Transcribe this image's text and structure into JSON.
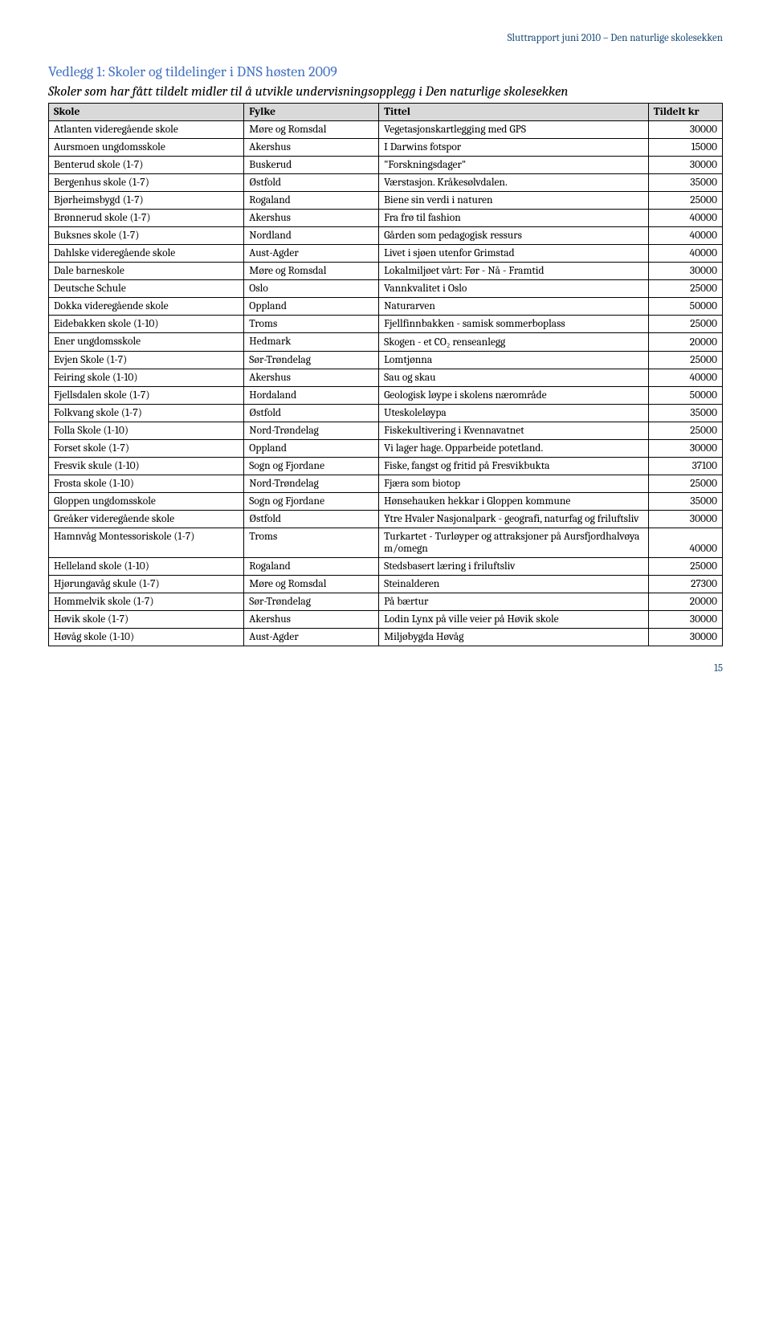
{
  "header": "Sluttrapport juni 2010 – Den naturlige skolesekken",
  "appendix_title": "Vedlegg 1: Skoler og tildelinger i DNS høsten 2009",
  "subtitle": "Skoler som har fått tildelt midler til å utvikle undervisningsopplegg i Den naturlige skolesekken",
  "columns": {
    "c1": "Skole",
    "c2": "Fylke",
    "c3": "Tittel",
    "c4": "Tildelt kr"
  },
  "rows": [
    {
      "skole": "Atlanten videregående skole",
      "fylke": "Møre og Romsdal",
      "tittel": "Vegetasjonskartlegging med GPS",
      "kr": "30000"
    },
    {
      "skole": "Aursmoen ungdomsskole",
      "fylke": "Akershus",
      "tittel": "I Darwins fotspor",
      "kr": "15000"
    },
    {
      "skole": "Benterud skole (1-7)",
      "fylke": "Buskerud",
      "tittel": "\"Forskningsdager\"",
      "kr": "30000"
    },
    {
      "skole": "Bergenhus skole (1-7)",
      "fylke": "Østfold",
      "tittel": "Værstasjon. Kråkesølvdalen.",
      "kr": "35000"
    },
    {
      "skole": "Bjørheimsbygd (1-7)",
      "fylke": "Rogaland",
      "tittel": "Biene sin verdi i naturen",
      "kr": "25000"
    },
    {
      "skole": "Brønnerud skole (1-7)",
      "fylke": "Akershus",
      "tittel": "Fra frø til fashion",
      "kr": "40000"
    },
    {
      "skole": "Buksnes skole (1-7)",
      "fylke": "Nordland",
      "tittel": "Gården som pedagogisk ressurs",
      "kr": "40000"
    },
    {
      "skole": "Dahlske videregående skole",
      "fylke": "Aust-Agder",
      "tittel": "Livet i sjøen utenfor Grimstad",
      "kr": "40000"
    },
    {
      "skole": "Dale barneskole",
      "fylke": "Møre og Romsdal",
      "tittel": "Lokalmiljøet vårt: Før - Nå - Framtid",
      "kr": "30000"
    },
    {
      "skole": "Deutsche Schule",
      "fylke": "Oslo",
      "tittel": "Vannkvalitet i Oslo",
      "kr": "25000"
    },
    {
      "skole": "Dokka videregående skole",
      "fylke": "Oppland",
      "tittel": "Naturarven",
      "kr": "50000"
    },
    {
      "skole": "Eidebakken skole (1-10)",
      "fylke": "Troms",
      "tittel": "Fjellfinnbakken - samisk sommerboplass",
      "kr": "25000"
    },
    {
      "skole": "Ener ungdomsskole",
      "fylke": "Hedmark",
      "tittel": "Skogen - et CO₂ renseanlegg",
      "kr": "20000"
    },
    {
      "skole": "Evjen Skole (1-7)",
      "fylke": "Sør-Trøndelag",
      "tittel": "Lomtjønna",
      "kr": "25000"
    },
    {
      "skole": "Feiring skole (1-10)",
      "fylke": "Akershus",
      "tittel": "Sau og skau",
      "kr": "40000"
    },
    {
      "skole": "Fjellsdalen skole (1-7)",
      "fylke": "Hordaland",
      "tittel": "Geologisk løype i skolens nærområde",
      "kr": "50000"
    },
    {
      "skole": "Folkvang skole (1-7)",
      "fylke": "Østfold",
      "tittel": "Uteskoleløypa",
      "kr": "35000"
    },
    {
      "skole": "Folla Skole (1-10)",
      "fylke": "Nord-Trøndelag",
      "tittel": "Fiskekultivering i Kvennavatnet",
      "kr": "25000"
    },
    {
      "skole": "Forset skole (1-7)",
      "fylke": "Oppland",
      "tittel": "Vi lager hage. Opparbeide potetland.",
      "kr": "30000"
    },
    {
      "skole": "Fresvik skule (1-10)",
      "fylke": "Sogn og Fjordane",
      "tittel": "Fiske, fangst og fritid på Fresvikbukta",
      "kr": "37100"
    },
    {
      "skole": "Frosta skole (1-10)",
      "fylke": "Nord-Trøndelag",
      "tittel": "Fjæra som biotop",
      "kr": "25000"
    },
    {
      "skole": "Gloppen ungdomsskole",
      "fylke": "Sogn og Fjordane",
      "tittel": "Hønsehauken hekkar i Gloppen kommune",
      "kr": "35000"
    },
    {
      "skole": "Greåker videregående skole",
      "fylke": "Østfold",
      "tittel": "Ytre Hvaler Nasjonalpark - geografi, naturfag og friluftsliv",
      "kr": "30000"
    },
    {
      "skole": "Hamnvåg Montessoriskole (1-7)",
      "fylke": "Troms",
      "tittel": "Turkartet - Turløyper og attraksjoner på Aursfjordhalvøya m/omegn",
      "kr": "40000"
    },
    {
      "skole": "Helleland skole (1-10)",
      "fylke": "Rogaland",
      "tittel": "Stedsbasert læring i friluftsliv",
      "kr": "25000"
    },
    {
      "skole": "Hjørungavåg skule (1-7)",
      "fylke": "Møre og Romsdal",
      "tittel": "Steinalderen",
      "kr": "27300"
    },
    {
      "skole": "Hommelvik skole (1-7)",
      "fylke": "Sør-Trøndelag",
      "tittel": "På bærtur",
      "kr": "20000"
    },
    {
      "skole": "Høvik skole (1-7)",
      "fylke": "Akershus",
      "tittel": "Lodin Lynx på ville veier på Høvik skole",
      "kr": "30000"
    },
    {
      "skole": "Høvåg skole (1-10)",
      "fylke": "Aust-Agder",
      "tittel": "Miljøbygda Høvåg",
      "kr": "30000"
    }
  ],
  "page_number": "15",
  "style": {
    "title_color": "#4472c4",
    "header_text_color": "#1f4e79",
    "th_bg": "#d9d9d9",
    "border_color": "#000000",
    "body_bg": "#ffffff",
    "font_family": "Cambria, Georgia, serif"
  }
}
